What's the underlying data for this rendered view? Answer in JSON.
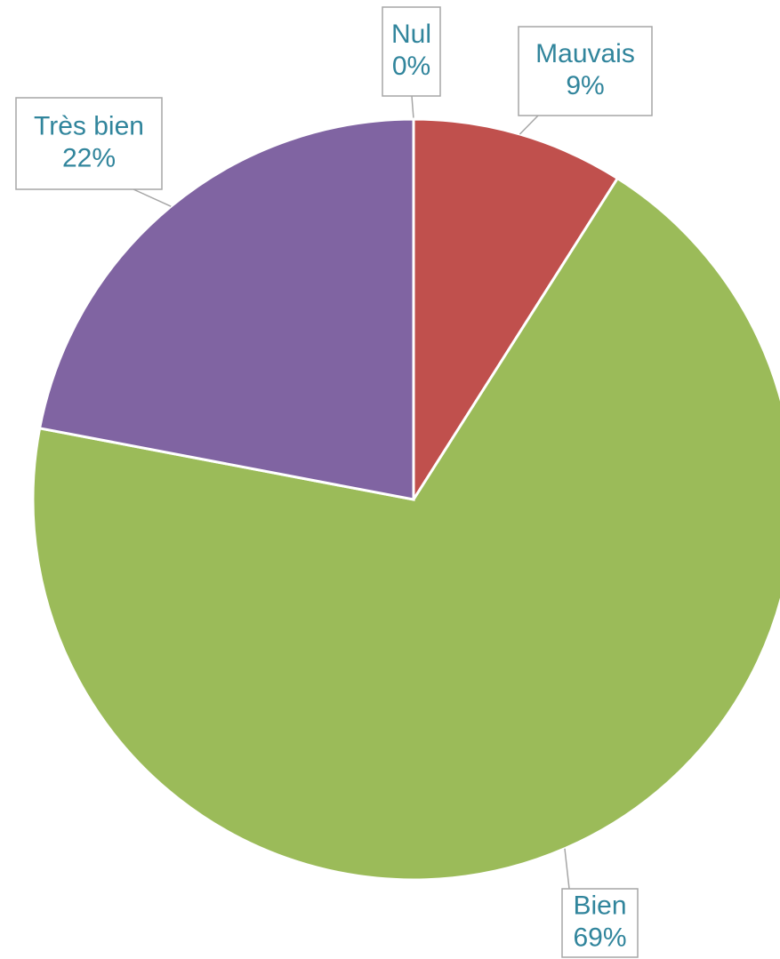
{
  "chart_data": {
    "type": "pie",
    "categories": [
      "Nul",
      "Mauvais",
      "Bien",
      "Très bien"
    ],
    "values": [
      0,
      9,
      69,
      22
    ],
    "value_labels": [
      "0%",
      "9%",
      "69%",
      "22%"
    ],
    "colors": [
      "#4f81bd",
      "#c0504d",
      "#9bbb59",
      "#8064a2"
    ]
  }
}
